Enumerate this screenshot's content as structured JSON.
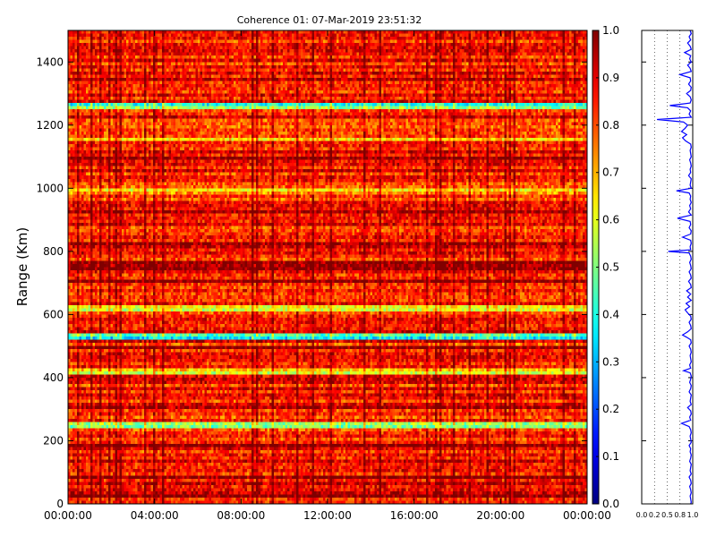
{
  "title": "Coherence 01: 07-Mar-2019 23:51:32",
  "chart_data": [
    {
      "type": "heatmap",
      "title": "Coherence 01: 07-Mar-2019 23:51:32",
      "xlabel": "",
      "ylabel": "Range (Km)",
      "x_tick_labels": [
        "00:00:00",
        "04:00:00",
        "08:00:00",
        "12:00:00",
        "16:00:00",
        "20:00:00",
        "00:00:00"
      ],
      "y_ticks": [
        0,
        200,
        400,
        600,
        800,
        1000,
        1200,
        1400
      ],
      "ylim": [
        0,
        1500
      ],
      "colormap": "jet",
      "clim": [
        0.0,
        1.0
      ],
      "colorbar_ticks": [
        "0.0",
        "0.1",
        "0.2",
        "0.3",
        "0.4",
        "0.5",
        "0.6",
        "0.7",
        "0.8",
        "0.9",
        "1.0"
      ],
      "grid": false,
      "typical_value": 0.85,
      "low_coherence_bands_km": [
        {
          "range": 1260,
          "value": 0.35
        },
        {
          "range": 1160,
          "value": 0.62
        },
        {
          "range": 990,
          "value": 0.55
        },
        {
          "range": 620,
          "value": 0.55
        },
        {
          "range": 530,
          "value": 0.25
        },
        {
          "range": 420,
          "value": 0.5
        },
        {
          "range": 250,
          "value": 0.35
        },
        {
          "range": 60,
          "value": 0.75
        }
      ]
    },
    {
      "type": "line",
      "title": "",
      "xlabel": "",
      "ylabel": "",
      "x_tick_labels": [
        "0.0",
        "0.2",
        "0.5",
        "0.8",
        "1.0"
      ],
      "xlim": [
        0.0,
        1.0
      ],
      "ylim": [
        0,
        1500
      ],
      "grid": "vertical dotted",
      "series": [
        {
          "color": "#0000ff",
          "points": [
            [
              0.95,
              1500
            ],
            [
              0.97,
              1490
            ],
            [
              0.93,
              1480
            ],
            [
              0.96,
              1470
            ],
            [
              0.9,
              1460
            ],
            [
              0.95,
              1450
            ],
            [
              0.97,
              1440
            ],
            [
              0.84,
              1430
            ],
            [
              0.96,
              1420
            ],
            [
              0.94,
              1410
            ],
            [
              0.97,
              1400
            ],
            [
              0.9,
              1390
            ],
            [
              0.95,
              1380
            ],
            [
              0.97,
              1370
            ],
            [
              0.75,
              1360
            ],
            [
              0.95,
              1350
            ],
            [
              0.96,
              1340
            ],
            [
              0.92,
              1330
            ],
            [
              0.97,
              1320
            ],
            [
              0.96,
              1310
            ],
            [
              0.88,
              1300
            ],
            [
              0.95,
              1290
            ],
            [
              0.97,
              1280
            ],
            [
              0.95,
              1270
            ],
            [
              0.55,
              1262
            ],
            [
              0.9,
              1255
            ],
            [
              0.96,
              1245
            ],
            [
              0.93,
              1235
            ],
            [
              0.97,
              1225
            ],
            [
              0.3,
              1218
            ],
            [
              0.82,
              1210
            ],
            [
              0.9,
              1200
            ],
            [
              0.85,
              1190
            ],
            [
              0.78,
              1180
            ],
            [
              0.88,
              1170
            ],
            [
              0.8,
              1160
            ],
            [
              0.86,
              1150
            ],
            [
              0.96,
              1140
            ],
            [
              0.97,
              1130
            ],
            [
              0.95,
              1120
            ],
            [
              0.96,
              1110
            ],
            [
              0.97,
              1100
            ],
            [
              0.94,
              1090
            ],
            [
              0.96,
              1080
            ],
            [
              0.97,
              1070
            ],
            [
              0.95,
              1060
            ],
            [
              0.96,
              1050
            ],
            [
              0.92,
              1040
            ],
            [
              0.97,
              1030
            ],
            [
              0.96,
              1020
            ],
            [
              0.95,
              1010
            ],
            [
              0.97,
              1000
            ],
            [
              0.68,
              992
            ],
            [
              0.93,
              985
            ],
            [
              0.96,
              975
            ],
            [
              0.95,
              965
            ],
            [
              0.97,
              955
            ],
            [
              0.94,
              945
            ],
            [
              0.96,
              935
            ],
            [
              0.92,
              925
            ],
            [
              0.97,
              915
            ],
            [
              0.7,
              905
            ],
            [
              0.95,
              895
            ],
            [
              0.96,
              885
            ],
            [
              0.93,
              875
            ],
            [
              0.97,
              865
            ],
            [
              0.96,
              855
            ],
            [
              0.8,
              845
            ],
            [
              0.96,
              835
            ],
            [
              0.97,
              825
            ],
            [
              0.95,
              815
            ],
            [
              0.96,
              805
            ],
            [
              0.52,
              800
            ],
            [
              0.93,
              795
            ],
            [
              0.96,
              785
            ],
            [
              0.97,
              775
            ],
            [
              0.94,
              765
            ],
            [
              0.96,
              755
            ],
            [
              0.97,
              745
            ],
            [
              0.93,
              735
            ],
            [
              0.96,
              725
            ],
            [
              0.97,
              715
            ],
            [
              0.92,
              705
            ],
            [
              0.96,
              695
            ],
            [
              0.97,
              685
            ],
            [
              0.88,
              675
            ],
            [
              0.96,
              665
            ],
            [
              0.9,
              655
            ],
            [
              0.97,
              645
            ],
            [
              0.87,
              635
            ],
            [
              0.94,
              625
            ],
            [
              0.85,
              615
            ],
            [
              0.9,
              605
            ],
            [
              0.96,
              595
            ],
            [
              0.97,
              585
            ],
            [
              0.93,
              575
            ],
            [
              0.96,
              565
            ],
            [
              0.97,
              555
            ],
            [
              0.9,
              545
            ],
            [
              0.8,
              535
            ],
            [
              0.88,
              528
            ],
            [
              0.96,
              520
            ],
            [
              0.97,
              510
            ],
            [
              0.93,
              500
            ],
            [
              0.96,
              490
            ],
            [
              0.97,
              480
            ],
            [
              0.95,
              470
            ],
            [
              0.96,
              460
            ],
            [
              0.97,
              450
            ],
            [
              0.94,
              440
            ],
            [
              0.96,
              430
            ],
            [
              0.82,
              422
            ],
            [
              0.95,
              415
            ],
            [
              0.97,
              405
            ],
            [
              0.96,
              395
            ],
            [
              0.94,
              385
            ],
            [
              0.97,
              375
            ],
            [
              0.96,
              365
            ],
            [
              0.93,
              355
            ],
            [
              0.97,
              345
            ],
            [
              0.96,
              335
            ],
            [
              0.95,
              325
            ],
            [
              0.97,
              315
            ],
            [
              0.9,
              305
            ],
            [
              0.96,
              295
            ],
            [
              0.97,
              285
            ],
            [
              0.94,
              275
            ],
            [
              0.96,
              265
            ],
            [
              0.78,
              255
            ],
            [
              0.93,
              245
            ],
            [
              0.96,
              235
            ],
            [
              0.97,
              225
            ],
            [
              0.95,
              215
            ],
            [
              0.96,
              205
            ],
            [
              0.97,
              195
            ],
            [
              0.93,
              185
            ],
            [
              0.96,
              175
            ],
            [
              0.95,
              165
            ],
            [
              0.97,
              155
            ],
            [
              0.96,
              145
            ],
            [
              0.94,
              135
            ],
            [
              0.97,
              125
            ],
            [
              0.96,
              115
            ],
            [
              0.95,
              105
            ],
            [
              0.97,
              95
            ],
            [
              0.93,
              85
            ],
            [
              0.96,
              75
            ],
            [
              0.97,
              65
            ],
            [
              0.94,
              55
            ],
            [
              0.96,
              45
            ],
            [
              0.97,
              35
            ],
            [
              0.95,
              25
            ],
            [
              0.96,
              15
            ],
            [
              0.97,
              5
            ],
            [
              0.96,
              0
            ]
          ]
        }
      ]
    }
  ]
}
